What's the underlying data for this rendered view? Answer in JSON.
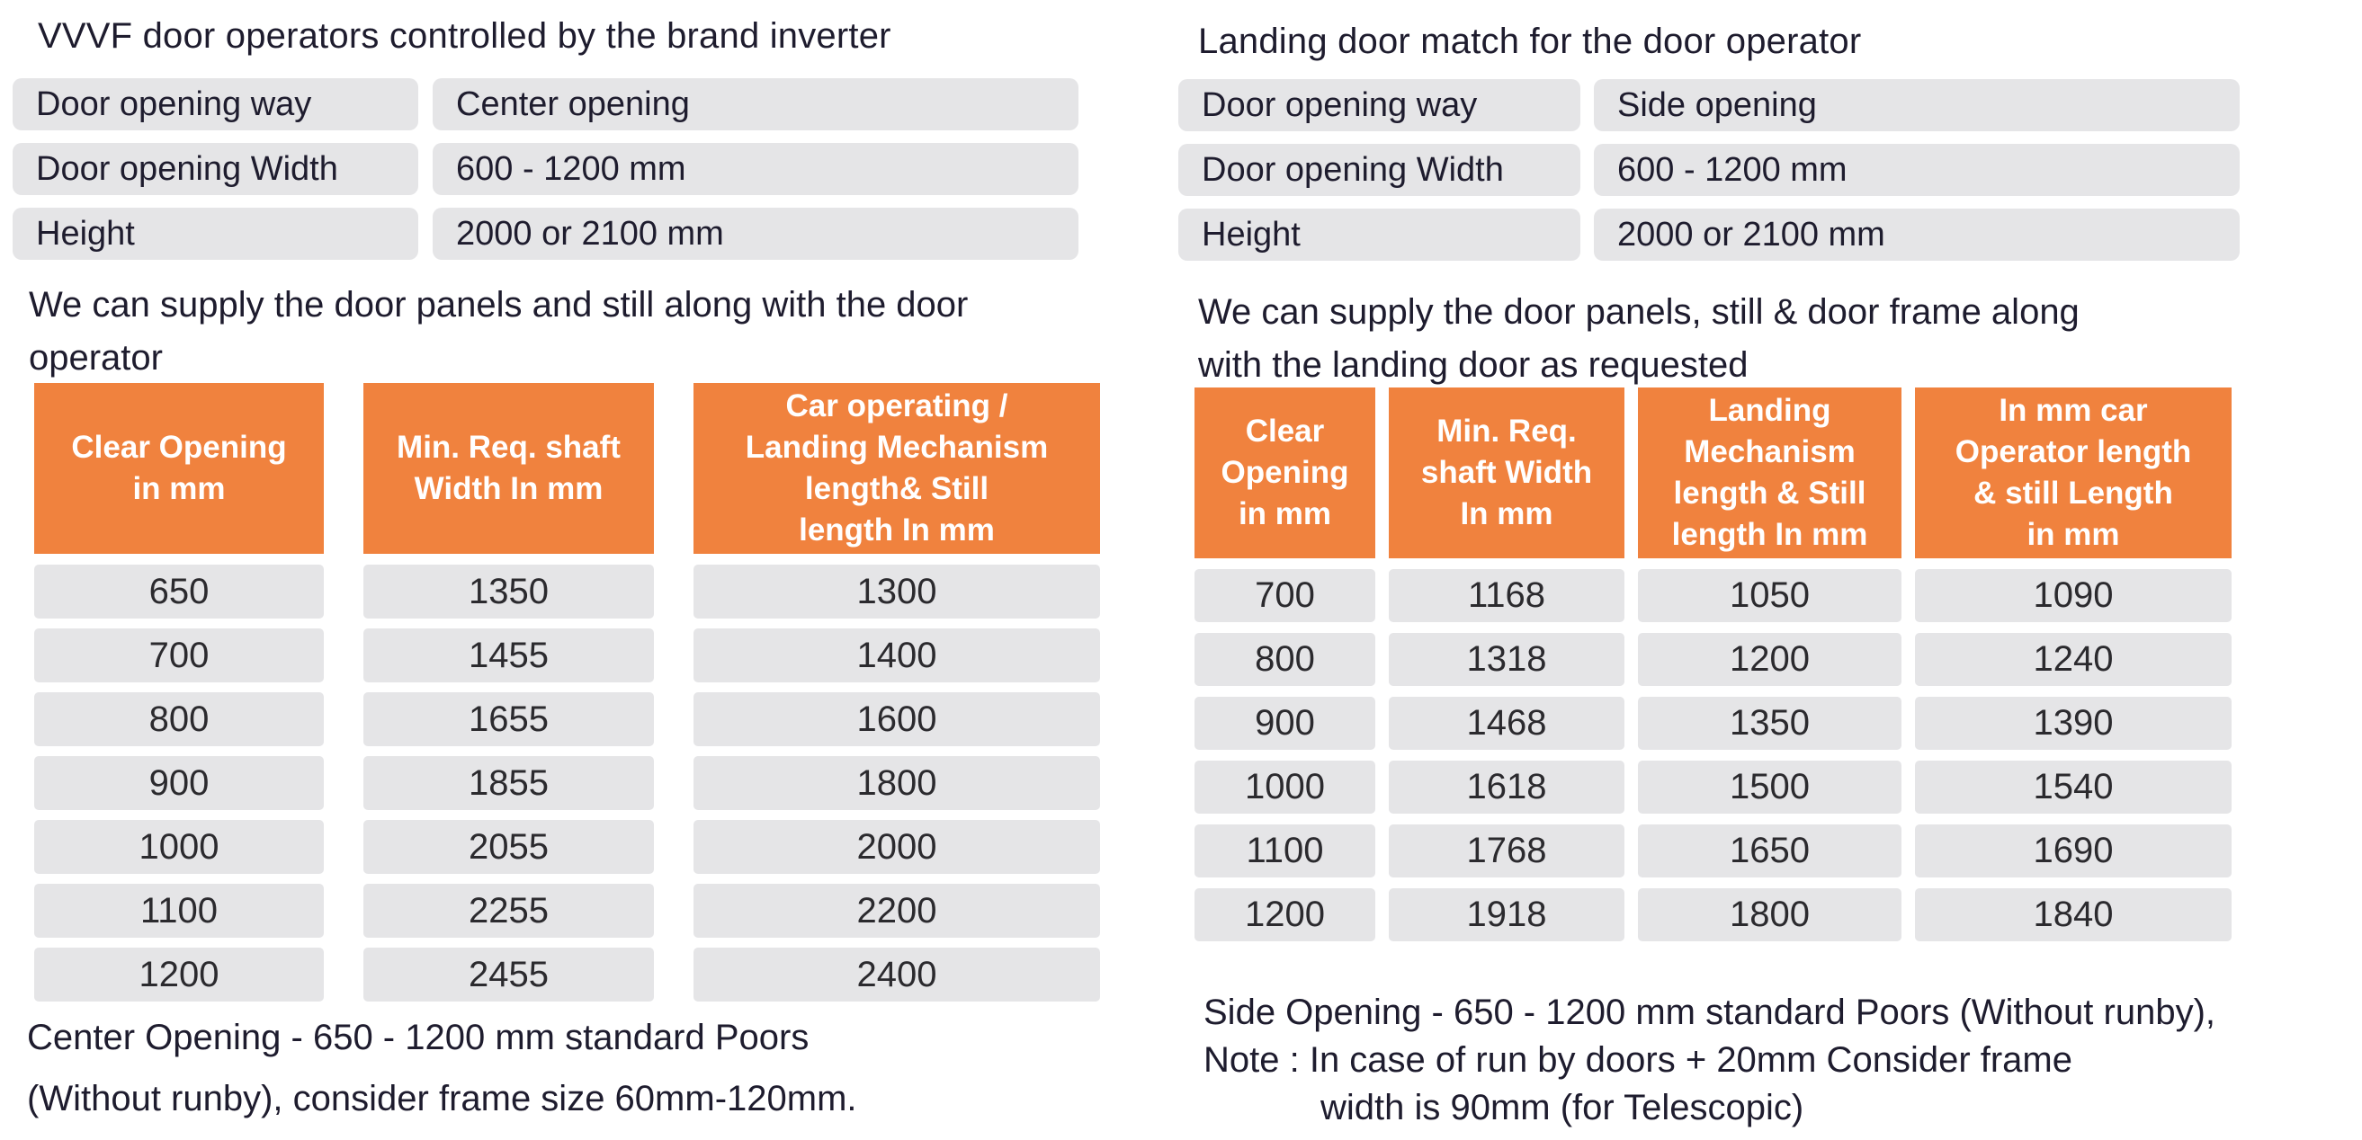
{
  "colors": {
    "accent_orange": "#F0823E",
    "cell_gray": "#E5E5E7",
    "title_text": "#1E1C2E",
    "number_text": "#2B2A2E",
    "header_text": "#FFFFFF",
    "background": "#FFFFFF"
  },
  "left": {
    "title": "VVVF door operators controlled by the brand inverter",
    "specs": [
      {
        "label": "Door opening way",
        "value": "Center opening"
      },
      {
        "label": "Door opening Width",
        "value": "600 - 1200 mm"
      },
      {
        "label": "Height",
        "value": "2000 or 2100 mm"
      }
    ],
    "intro": "We can supply the door panels and still along with the door\noperator",
    "table": {
      "headers": [
        "Clear Opening\nin mm",
        "Min. Req. shaft\nWidth In mm",
        "Car operating /\nLanding Mechanism\nlength& Still\nlength In mm"
      ],
      "rows": [
        [
          "650",
          "1350",
          "1300"
        ],
        [
          "700",
          "1455",
          "1400"
        ],
        [
          "800",
          "1655",
          "1600"
        ],
        [
          "900",
          "1855",
          "1800"
        ],
        [
          "1000",
          "2055",
          "2000"
        ],
        [
          "1100",
          "2255",
          "2200"
        ],
        [
          "1200",
          "2455",
          "2400"
        ]
      ]
    },
    "footer": {
      "line1": "Center Opening - 650 - 1200 mm standard Poors",
      "line2": "(Without runby), consider frame size 60mm-120mm."
    }
  },
  "right": {
    "title": "Landing door match for the door operator",
    "specs": [
      {
        "label": "Door opening way",
        "value": "Side opening"
      },
      {
        "label": "Door opening Width",
        "value": "600 - 1200 mm"
      },
      {
        "label": "Height",
        "value": "2000 or 2100 mm"
      }
    ],
    "intro": "We can supply the door panels, still & door frame along\nwith the landing door as requested",
    "table": {
      "headers": [
        "Clear\nOpening\nin mm",
        "Min. Req.\nshaft Width\nIn mm",
        "Landing\nMechanism\nlength & Still\nlength In mm",
        "In mm car\nOperator length\n& still Length\nin mm"
      ],
      "rows": [
        [
          "700",
          "1168",
          "1050",
          "1090"
        ],
        [
          "800",
          "1318",
          "1200",
          "1240"
        ],
        [
          "900",
          "1468",
          "1350",
          "1390"
        ],
        [
          "1000",
          "1618",
          "1500",
          "1540"
        ],
        [
          "1100",
          "1768",
          "1650",
          "1690"
        ],
        [
          "1200",
          "1918",
          "1800",
          "1840"
        ]
      ]
    },
    "footer": {
      "line1": "Side Opening - 650 - 1200 mm standard Poors (Without runby),",
      "line2": "Note : In case of run by doors + 20mm Consider frame",
      "line3": "width is 90mm (for Telescopic)"
    }
  }
}
